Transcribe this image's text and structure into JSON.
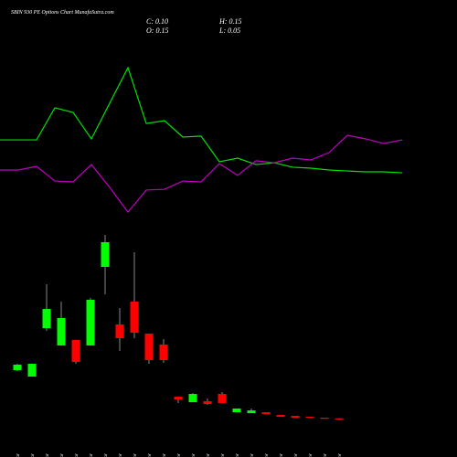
{
  "chart_data": {
    "type": "candlestick",
    "title": "SBIN 930 PE Options Chart MunafaSutra.com",
    "info": [
      "C: 0.10",
      "O: 0.15",
      "H: 0.15",
      "L: 0.05"
    ],
    "categories": [
      "19 Mar",
      "20 Mar",
      "22 Mar",
      "24 Mar",
      "25 Mar",
      "27 Mar",
      "28 Mar",
      "01 Apr",
      "02 Apr",
      "03 Apr",
      "04 Apr",
      "07 Apr",
      "08 Apr",
      "09 Apr",
      "11 Apr",
      "15 Apr",
      "16 Apr",
      "17 Apr",
      "21 Apr",
      "22 Apr",
      "23 Apr",
      "24 Apr",
      "25 Apr"
    ],
    "open": [
      3.67,
      3.2,
      6.73,
      5.47,
      5.87,
      5.47,
      11.2,
      7,
      8.67,
      6.33,
      5.53,
      1.73,
      1.33,
      1.4,
      1.93,
      0.6,
      0.53,
      0.6,
      0.4,
      0.33,
      0.27,
      0.2,
      0.15
    ],
    "high": [
      4.13,
      4.13,
      9.93,
      8.67,
      5.87,
      8.93,
      13.53,
      8.2,
      12.27,
      6.33,
      5.93,
      1.73,
      2,
      1.6,
      2.07,
      0.87,
      0.87,
      0.6,
      0.4,
      0.33,
      0.27,
      0.2,
      0.15
    ],
    "low": [
      3.6,
      3.2,
      6.53,
      5.47,
      4.13,
      5.47,
      9.2,
      5.07,
      6,
      4.13,
      4.2,
      1.27,
      1.33,
      1.13,
      1.27,
      0.6,
      0.53,
      0.47,
      0.27,
      0.2,
      0.2,
      0.13,
      0.05
    ],
    "close": [
      4.07,
      4.13,
      8.13,
      7.47,
      4.27,
      8.8,
      13,
      6,
      6.4,
      4.4,
      4.4,
      1.53,
      1.93,
      1.2,
      1.27,
      0.87,
      0.73,
      0.47,
      0.27,
      0.2,
      0.2,
      0.13,
      0.1
    ],
    "up_color": "#00ff00",
    "down_color": "#ff0000",
    "ylim": [
      0,
      14
    ],
    "lines": [
      {
        "color": "#00e000",
        "values": [
          48.3,
          48.3,
          48.3,
          67.8,
          65,
          48.9,
          70.6,
          92.2,
          58.3,
          60,
          50,
          50.6,
          35,
          37.2,
          33.3,
          34.4,
          31.7,
          31.1,
          30,
          29.4,
          28.9,
          28.9,
          28.3
        ]
      },
      {
        "color": "#c000c0",
        "values": [
          30,
          30,
          32.2,
          23.3,
          22.8,
          33.3,
          19.4,
          4.4,
          17.8,
          18.3,
          23.3,
          22.8,
          33.9,
          26.7,
          35.6,
          34.4,
          37.2,
          36.1,
          40.6,
          51.1,
          48.9,
          46.1,
          48.3
        ]
      }
    ],
    "lines_ylim": [
      0,
      100
    ]
  }
}
